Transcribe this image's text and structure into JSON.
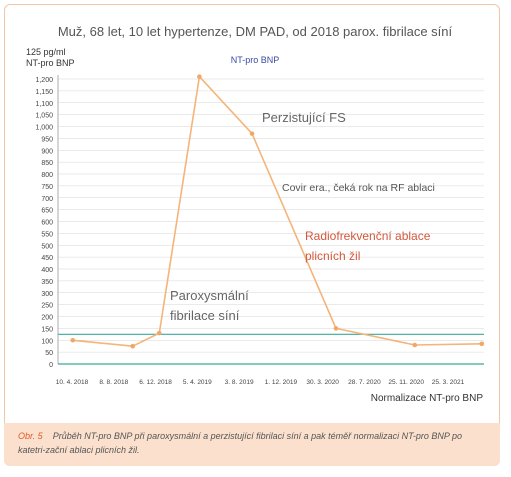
{
  "chart_data": {
    "type": "line",
    "title": "Muž, 68 let, 10 let hypertenze, DM PAD, od 2018 parox. fibrilace síní",
    "unit_label": "125 pg/ml",
    "ylabel": "NT-pro BNP",
    "series_label": "NT-pro BNP",
    "xlabel": "Normalizace NT-pro BNP",
    "ylim": [
      0,
      1200
    ],
    "ytick_step": 50,
    "xticks": [
      "10. 4. 2018",
      "8. 8. 2018",
      "6. 12. 2018",
      "5. 4. 2019",
      "3. 8. 2019",
      "1. 12. 2019",
      "30. 3. 2020",
      "28. 7. 2020",
      "25. 11. 2020",
      "25. 3. 2021"
    ],
    "x_start": "2018-03-01",
    "x_end": "2021-05-01",
    "series": [
      {
        "values": [
          {
            "x": "2018-04-10",
            "y": 100
          },
          {
            "x": "2018-09-20",
            "y": 75
          },
          {
            "x": "2018-12-01",
            "y": 130
          },
          {
            "x": "2019-03-20",
            "y": 1210
          },
          {
            "x": "2019-08-10",
            "y": 970
          },
          {
            "x": "2020-03-25",
            "y": 150
          },
          {
            "x": "2020-10-25",
            "y": 80
          },
          {
            "x": "2021-04-25",
            "y": 85
          }
        ]
      }
    ],
    "reference_lines": [
      125,
      0
    ],
    "grid": true,
    "annotations": [
      {
        "text": "Perzistující FS",
        "color": "#666666"
      },
      {
        "text": "Covir era., čeká rok na RF ablaci",
        "color": "#555555"
      },
      {
        "text": "Radiofrekvenční ablace plicních žil",
        "color": "#d4573c"
      },
      {
        "text": "Paroxysmální fibrilace síní",
        "color": "#666666"
      }
    ],
    "colors": {
      "line": "#f5b47a",
      "marker": "#f0a868",
      "reference": "#3aa89a",
      "grid": "#d6d6d6"
    }
  },
  "caption": {
    "number": "Obr. 5",
    "text": "Průběh NT-pro BNP při paroxysmální a perzistující fibrilaci síní a pak téměř normalizaci NT-pro BNP po katetri-zační ablaci plicních žil."
  }
}
